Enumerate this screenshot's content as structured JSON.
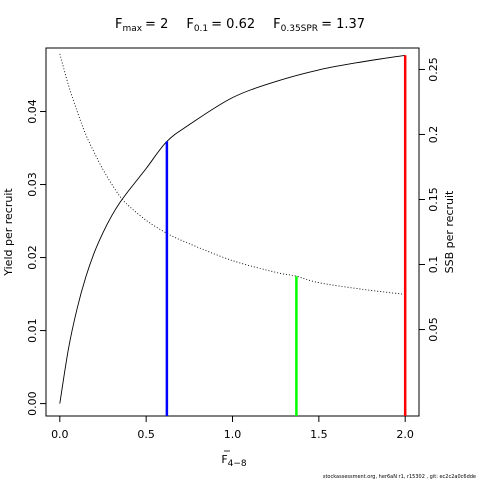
{
  "chart_data": {
    "type": "line",
    "title": {
      "fmax": {
        "base": "F",
        "sub": "max",
        "value": "= 2"
      },
      "f01": {
        "base": "F",
        "sub": "0.1",
        "value": "= 0.62"
      },
      "fspr": {
        "base": "F",
        "sub": "0.35SPR",
        "value": "= 1.37"
      }
    },
    "xlabel": {
      "base": "F",
      "sub": "4−8"
    },
    "ylabel_left": "Yield per recruit",
    "ylabel_right": "SSB per recruit",
    "xlim": [
      -0.08,
      2.08
    ],
    "ylim_left": [
      -0.0017,
      0.0487
    ],
    "ylim_right": [
      -0.0165,
      0.2665
    ],
    "x_ticks": [
      "0.0",
      "0.5",
      "1.0",
      "1.5",
      "2.0"
    ],
    "y_left_ticks": [
      "0.00",
      "0.01",
      "0.02",
      "0.03",
      "0.04"
    ],
    "y_right_ticks": [
      "0.05",
      "0.1",
      "0.15",
      "0.2",
      "0.25"
    ],
    "series": [
      {
        "axis": "left",
        "style": "solid",
        "x": [
          0,
          0.05,
          0.1,
          0.15,
          0.2,
          0.25,
          0.3,
          0.35,
          0.4,
          0.5,
          0.62,
          0.75,
          1.0,
          1.25,
          1.5,
          1.75,
          2.0
        ],
        "values": [
          0.0,
          0.0075,
          0.013,
          0.0173,
          0.0207,
          0.0234,
          0.0257,
          0.0276,
          0.0292,
          0.0322,
          0.0359,
          0.0382,
          0.0419,
          0.0441,
          0.0457,
          0.0468,
          0.0477
        ]
      },
      {
        "axis": "right",
        "style": "dotted",
        "x": [
          0,
          0.05,
          0.1,
          0.15,
          0.2,
          0.25,
          0.3,
          0.35,
          0.4,
          0.5,
          0.62,
          0.75,
          1.0,
          1.25,
          1.37,
          1.5,
          1.75,
          2.0
        ],
        "values": [
          0.262,
          0.238,
          0.218,
          0.2,
          0.186,
          0.173,
          0.162,
          0.152,
          0.145,
          0.134,
          0.124,
          0.116,
          0.103,
          0.094,
          0.091,
          0.086,
          0.081,
          0.077
        ]
      }
    ],
    "reference_lines": [
      {
        "name": "Fmax",
        "x": 2.0,
        "axis": "left",
        "y": 0.0477,
        "color": "#ff0000"
      },
      {
        "name": "F0.1",
        "x": 0.62,
        "axis": "left",
        "y": 0.0359,
        "color": "#0000ff"
      },
      {
        "name": "F0.35SPR",
        "x": 1.37,
        "axis": "right",
        "y": 0.091,
        "color": "#00ff00"
      }
    ],
    "grid": false,
    "legend": "none"
  },
  "footer": "stockassessment.org, her6aN r1, r15302 , git: ec2c2a0c6dde"
}
